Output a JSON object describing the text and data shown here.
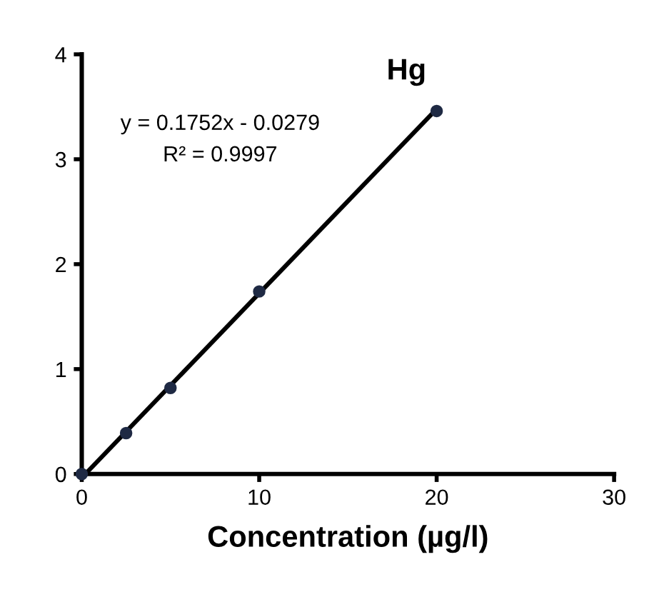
{
  "chart_data": {
    "type": "scatter",
    "title": "Hg",
    "xlabel": "Concentration (µg/l)",
    "xlim": [
      0,
      30
    ],
    "xticks": [
      0,
      10,
      20,
      30
    ],
    "ylim": [
      0,
      4
    ],
    "yticks": [
      0,
      1,
      2,
      3,
      4
    ],
    "grid": false,
    "legend": false,
    "series": [
      {
        "color": "#1f2a44",
        "marker": "circle",
        "x": [
          0,
          2.5,
          5,
          10,
          20
        ],
        "values": [
          0,
          0.39,
          0.82,
          1.74,
          3.46
        ]
      },
      {
        "type": "line",
        "color": "#000000",
        "x": [
          0.2,
          20
        ],
        "values": [
          0,
          3.48
        ],
        "line_style": "solid",
        "marker": "none"
      }
    ],
    "annotations": [
      "y = 0.1752x - 0.0279",
      "R² = 0.9997"
    ]
  }
}
